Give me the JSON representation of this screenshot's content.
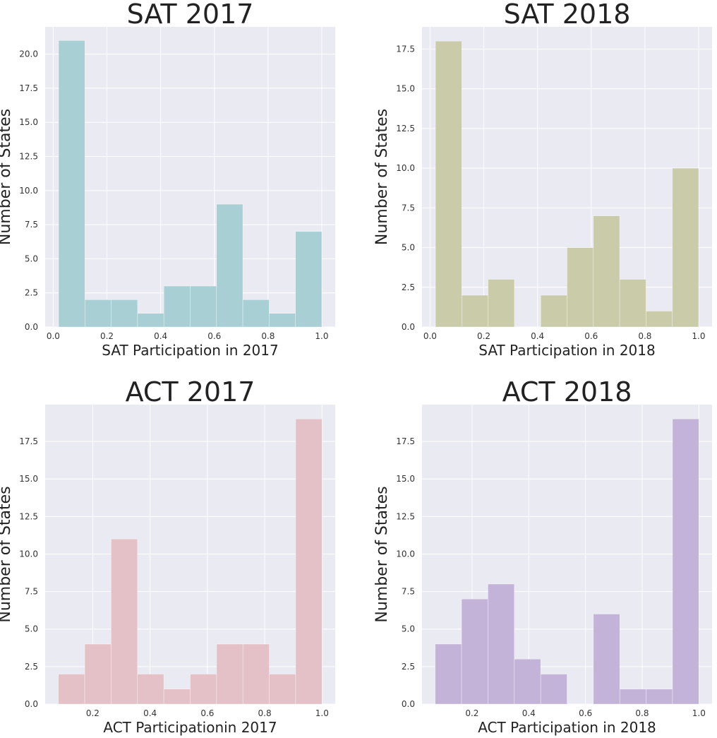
{
  "chart_data": [
    {
      "type": "bar",
      "title": "SAT 2017",
      "xlabel": "SAT Participation in 2017",
      "ylabel": "Number of States",
      "color": "#a7cfd4",
      "bin_edges": [
        0.02,
        0.118,
        0.216,
        0.314,
        0.412,
        0.51,
        0.608,
        0.706,
        0.804,
        0.902,
        1.0
      ],
      "values": [
        21,
        2,
        2,
        1,
        3,
        3,
        9,
        2,
        1,
        7
      ],
      "xlim": [
        -0.03,
        1.05
      ],
      "ylim": [
        0,
        22
      ],
      "xticks": [
        0.0,
        0.2,
        0.4,
        0.6,
        0.8,
        1.0
      ],
      "xtick_labels": [
        "0.0",
        "0.2",
        "0.4",
        "0.6",
        "0.8",
        "1.0"
      ],
      "yticks": [
        0,
        2.5,
        5,
        7.5,
        10,
        12.5,
        15,
        17.5,
        20
      ],
      "ytick_labels": [
        "0.0",
        "2.5",
        "5.0",
        "7.5",
        "10.0",
        "12.5",
        "15.0",
        "17.5",
        "20.0"
      ],
      "grid": true
    },
    {
      "type": "bar",
      "title": "SAT 2018",
      "xlabel": "SAT Participation in 2018",
      "ylabel": "Number of States",
      "color": "#cacba8",
      "bin_edges": [
        0.02,
        0.118,
        0.216,
        0.314,
        0.412,
        0.51,
        0.608,
        0.706,
        0.804,
        0.902,
        1.0
      ],
      "values": [
        18,
        2,
        3,
        0,
        2,
        5,
        7,
        3,
        1,
        10
      ],
      "xlim": [
        -0.03,
        1.05
      ],
      "ylim": [
        0,
        18.9
      ],
      "xticks": [
        0.0,
        0.2,
        0.4,
        0.6,
        0.8,
        1.0
      ],
      "xtick_labels": [
        "0.0",
        "0.2",
        "0.4",
        "0.6",
        "0.8",
        "1.0"
      ],
      "yticks": [
        0,
        2.5,
        5,
        7.5,
        10,
        12.5,
        15,
        17.5
      ],
      "ytick_labels": [
        "0.0",
        "2.5",
        "5.0",
        "7.5",
        "10.0",
        "12.5",
        "15.0",
        "17.5"
      ],
      "grid": true
    },
    {
      "type": "bar",
      "title": "ACT 2017",
      "xlabel": "ACT Participationin 2017",
      "ylabel": "Number of States",
      "color": "#e3c1c6",
      "bin_edges": [
        0.08,
        0.172,
        0.264,
        0.356,
        0.448,
        0.54,
        0.632,
        0.724,
        0.816,
        0.908,
        1.0
      ],
      "values": [
        2,
        4,
        11,
        2,
        1,
        2,
        4,
        4,
        2,
        19
      ],
      "xlim": [
        0.034,
        1.046
      ],
      "ylim": [
        0,
        19.95
      ],
      "xticks": [
        0.2,
        0.4,
        0.6,
        0.8,
        1.0
      ],
      "xtick_labels": [
        "0.2",
        "0.4",
        "0.6",
        "0.8",
        "1.0"
      ],
      "yticks": [
        0,
        2.5,
        5,
        7.5,
        10,
        12.5,
        15,
        17.5
      ],
      "ytick_labels": [
        "0.0",
        "2.5",
        "5.0",
        "7.5",
        "10.0",
        "12.5",
        "15.0",
        "17.5"
      ],
      "grid": true
    },
    {
      "type": "bar",
      "title": "ACT 2018",
      "xlabel": "ACT Participation in 2018",
      "ylabel": "Number of States",
      "color": "#c3b3d8",
      "bin_edges": [
        0.07,
        0.163,
        0.256,
        0.349,
        0.442,
        0.535,
        0.628,
        0.721,
        0.814,
        0.907,
        1.0
      ],
      "values": [
        4,
        7,
        8,
        3,
        2,
        0,
        6,
        1,
        1,
        19
      ],
      "xlim": [
        0.0235,
        1.0465
      ],
      "ylim": [
        0,
        19.95
      ],
      "xticks": [
        0.2,
        0.4,
        0.6,
        0.8,
        1.0
      ],
      "xtick_labels": [
        "0.2",
        "0.4",
        "0.6",
        "0.8",
        "1.0"
      ],
      "yticks": [
        0,
        2.5,
        5,
        7.5,
        10,
        12.5,
        15,
        17.5
      ],
      "ytick_labels": [
        "0.0",
        "2.5",
        "5.0",
        "7.5",
        "10.0",
        "12.5",
        "15.0",
        "17.5"
      ],
      "grid": true
    }
  ],
  "style": {
    "axes_background": "#eaeaf2",
    "grid_color": "#ffffff",
    "text_color": "#222222"
  }
}
